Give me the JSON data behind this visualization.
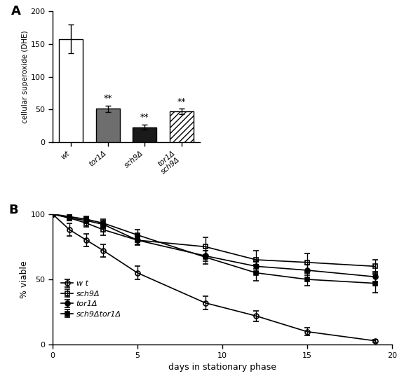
{
  "panel_A": {
    "values": [
      158,
      51,
      23,
      47
    ],
    "errors": [
      22,
      5,
      4,
      4
    ],
    "bar_colors": [
      "white",
      "#6e6e6e",
      "#1a1a1a",
      "white"
    ],
    "bar_edgecolors": [
      "black",
      "black",
      "black",
      "black"
    ],
    "sig_labels": [
      "",
      "**",
      "**",
      "**"
    ],
    "ylabel": "cellular superoxide (DHE)",
    "ylim": [
      0,
      200
    ],
    "yticks": [
      0,
      50,
      100,
      150,
      200
    ],
    "hatch": [
      "",
      "",
      "",
      "////"
    ],
    "cat_labels": [
      "wt",
      "tor1Δ",
      "sch9Δ",
      "tor1Δ\nsch9Δ"
    ]
  },
  "panel_B": {
    "xlabel": "days in stationary phase",
    "ylabel": "% viable",
    "xlim": [
      0,
      20
    ],
    "ylim": [
      0,
      100
    ],
    "xticks": [
      0,
      5,
      10,
      15,
      20
    ],
    "yticks": [
      0,
      50,
      100
    ],
    "legend_labels": [
      "w t",
      "sch9Δ",
      "tor1Δ",
      "sch9Δtor1Δ"
    ],
    "wt": {
      "x": [
        0,
        1,
        2,
        3,
        5,
        9,
        12,
        15,
        19
      ],
      "y": [
        100,
        88,
        80,
        72,
        55,
        32,
        22,
        10,
        3
      ],
      "yerr": [
        0,
        5,
        5,
        5,
        5,
        5,
        4,
        3,
        1
      ]
    },
    "sch9": {
      "x": [
        0,
        1,
        2,
        3,
        5,
        9,
        12,
        15,
        19
      ],
      "y": [
        100,
        97,
        93,
        88,
        80,
        75,
        65,
        63,
        60
      ],
      "yerr": [
        0,
        2,
        3,
        4,
        4,
        7,
        7,
        7,
        5
      ]
    },
    "tor1": {
      "x": [
        0,
        1,
        2,
        3,
        5,
        9,
        12,
        15,
        19
      ],
      "y": [
        100,
        97,
        95,
        92,
        80,
        68,
        60,
        57,
        52
      ],
      "yerr": [
        0,
        2,
        2,
        3,
        3,
        4,
        4,
        4,
        4
      ]
    },
    "sch9tor1": {
      "x": [
        0,
        1,
        2,
        3,
        5,
        9,
        12,
        15,
        19
      ],
      "y": [
        100,
        98,
        96,
        93,
        84,
        67,
        55,
        50,
        47
      ],
      "yerr": [
        0,
        2,
        2,
        3,
        4,
        5,
        6,
        5,
        7
      ]
    }
  }
}
